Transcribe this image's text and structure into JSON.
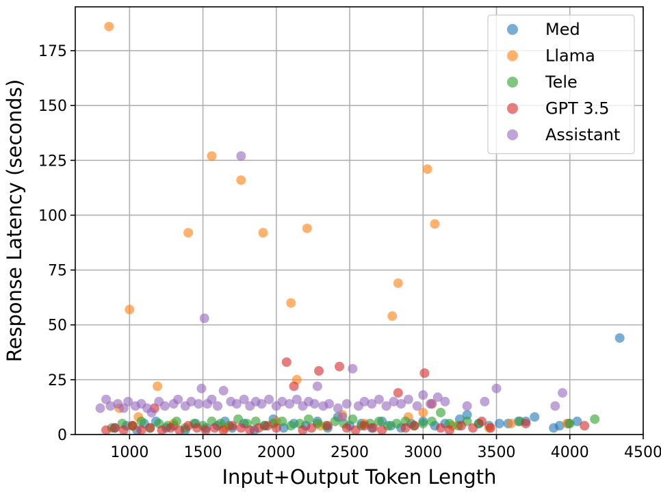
{
  "chart_data": {
    "type": "scatter",
    "xlabel": "Input+Output Token Length",
    "ylabel": "Response Latency (seconds)",
    "xlim": [
      630,
      4500
    ],
    "ylim": [
      0,
      195
    ],
    "xticks": [
      1000,
      1500,
      2000,
      2500,
      3000,
      3500,
      4000,
      4500
    ],
    "yticks": [
      0,
      25,
      50,
      75,
      100,
      125,
      150,
      175
    ],
    "grid": true,
    "legend_position": "top-right",
    "series": [
      {
        "name": "Med",
        "color": "#1f77b4",
        "points": [
          [
            900,
            3
          ],
          [
            980,
            4
          ],
          [
            1050,
            2
          ],
          [
            1100,
            5
          ],
          [
            1180,
            6
          ],
          [
            1250,
            3
          ],
          [
            1300,
            4
          ],
          [
            1380,
            2
          ],
          [
            1450,
            5
          ],
          [
            1520,
            3
          ],
          [
            1600,
            4
          ],
          [
            1650,
            6
          ],
          [
            1700,
            3
          ],
          [
            1780,
            5
          ],
          [
            1850,
            2
          ],
          [
            1920,
            4
          ],
          [
            1980,
            7
          ],
          [
            2050,
            3
          ],
          [
            2120,
            5
          ],
          [
            2200,
            4
          ],
          [
            2280,
            6
          ],
          [
            2350,
            3
          ],
          [
            2420,
            8
          ],
          [
            2500,
            4
          ],
          [
            2580,
            5
          ],
          [
            2650,
            3
          ],
          [
            2720,
            6
          ],
          [
            2780,
            4
          ],
          [
            2850,
            3
          ],
          [
            2920,
            5
          ],
          [
            3000,
            6
          ],
          [
            3080,
            4
          ],
          [
            3150,
            5
          ],
          [
            3250,
            7
          ],
          [
            3300,
            9
          ],
          [
            3380,
            5
          ],
          [
            3450,
            4
          ],
          [
            3520,
            5
          ],
          [
            3580,
            5
          ],
          [
            3650,
            6
          ],
          [
            3700,
            6
          ],
          [
            3760,
            8
          ],
          [
            3890,
            3
          ],
          [
            3930,
            4
          ],
          [
            3990,
            5
          ],
          [
            4050,
            6
          ],
          [
            4340,
            44
          ]
        ]
      },
      {
        "name": "Llama",
        "color": "#ff7f0e",
        "points": [
          [
            860,
            186
          ],
          [
            1000,
            57
          ],
          [
            930,
            12
          ],
          [
            1060,
            8
          ],
          [
            1190,
            22
          ],
          [
            1400,
            92
          ],
          [
            1560,
            127
          ],
          [
            1760,
            116
          ],
          [
            1910,
            92
          ],
          [
            2100,
            60
          ],
          [
            2140,
            25
          ],
          [
            2210,
            94
          ],
          [
            2790,
            54
          ],
          [
            2830,
            69
          ],
          [
            3030,
            121
          ],
          [
            3080,
            96
          ],
          [
            1020,
            4
          ],
          [
            1300,
            5
          ],
          [
            1650,
            3
          ],
          [
            2000,
            6
          ],
          [
            2300,
            4
          ],
          [
            2600,
            5
          ],
          [
            3000,
            10
          ],
          [
            3200,
            4
          ],
          [
            3450,
            3
          ],
          [
            3600,
            5
          ],
          [
            3980,
            5
          ],
          [
            2900,
            8
          ],
          [
            2450,
            9
          ]
        ]
      },
      {
        "name": "Tele",
        "color": "#2ca02c",
        "points": [
          [
            880,
            3
          ],
          [
            950,
            5
          ],
          [
            1020,
            4
          ],
          [
            1080,
            6
          ],
          [
            1140,
            3
          ],
          [
            1200,
            5
          ],
          [
            1260,
            4
          ],
          [
            1320,
            6
          ],
          [
            1380,
            3
          ],
          [
            1440,
            5
          ],
          [
            1500,
            4
          ],
          [
            1560,
            6
          ],
          [
            1620,
            5
          ],
          [
            1680,
            4
          ],
          [
            1740,
            7
          ],
          [
            1800,
            5
          ],
          [
            1860,
            6
          ],
          [
            1920,
            4
          ],
          [
            1980,
            5
          ],
          [
            2040,
            6
          ],
          [
            2100,
            4
          ],
          [
            2160,
            5
          ],
          [
            2220,
            7
          ],
          [
            2280,
            5
          ],
          [
            2340,
            4
          ],
          [
            2400,
            6
          ],
          [
            2460,
            5
          ],
          [
            2520,
            7
          ],
          [
            2580,
            4
          ],
          [
            2640,
            5
          ],
          [
            2700,
            6
          ],
          [
            2760,
            4
          ],
          [
            2820,
            5
          ],
          [
            2880,
            6
          ],
          [
            2940,
            4
          ],
          [
            3000,
            5
          ],
          [
            3060,
            6
          ],
          [
            3120,
            10
          ],
          [
            3180,
            5
          ],
          [
            3240,
            4
          ],
          [
            3300,
            6
          ],
          [
            3380,
            5
          ],
          [
            3660,
            6
          ],
          [
            4000,
            5
          ],
          [
            4170,
            7
          ]
        ]
      },
      {
        "name": "GPT 3.5",
        "color": "#d62728",
        "points": [
          [
            840,
            2
          ],
          [
            900,
            3
          ],
          [
            960,
            2
          ],
          [
            1020,
            4
          ],
          [
            1080,
            2
          ],
          [
            1140,
            3
          ],
          [
            1170,
            12
          ],
          [
            1220,
            2
          ],
          [
            1280,
            3
          ],
          [
            1340,
            2
          ],
          [
            1400,
            4
          ],
          [
            1460,
            3
          ],
          [
            1520,
            2
          ],
          [
            1580,
            3
          ],
          [
            1640,
            2
          ],
          [
            1700,
            4
          ],
          [
            1760,
            3
          ],
          [
            1820,
            2
          ],
          [
            1880,
            3
          ],
          [
            1940,
            4
          ],
          [
            2000,
            3
          ],
          [
            2070,
            33
          ],
          [
            2120,
            22
          ],
          [
            2180,
            2
          ],
          [
            2240,
            3
          ],
          [
            2290,
            29
          ],
          [
            2350,
            4
          ],
          [
            2430,
            31
          ],
          [
            2480,
            3
          ],
          [
            2540,
            2
          ],
          [
            2600,
            4
          ],
          [
            2660,
            3
          ],
          [
            2720,
            2
          ],
          [
            2830,
            19
          ],
          [
            2880,
            3
          ],
          [
            2940,
            4
          ],
          [
            3010,
            28
          ],
          [
            3060,
            14
          ],
          [
            3120,
            3
          ],
          [
            3180,
            2
          ],
          [
            3260,
            4
          ],
          [
            3340,
            3
          ],
          [
            3400,
            6
          ],
          [
            3460,
            3
          ],
          [
            3700,
            5
          ],
          [
            4100,
            4
          ]
        ]
      },
      {
        "name": "Assistant",
        "color": "#9467bd",
        "points": [
          [
            800,
            12
          ],
          [
            840,
            16
          ],
          [
            870,
            13
          ],
          [
            920,
            14
          ],
          [
            960,
            12
          ],
          [
            990,
            15
          ],
          [
            1040,
            13
          ],
          [
            1080,
            14
          ],
          [
            1120,
            12
          ],
          [
            1200,
            15
          ],
          [
            1240,
            13
          ],
          [
            1300,
            14
          ],
          [
            1330,
            16
          ],
          [
            1380,
            13
          ],
          [
            1420,
            15
          ],
          [
            1470,
            14
          ],
          [
            1490,
            21
          ],
          [
            1510,
            53
          ],
          [
            1530,
            14
          ],
          [
            1560,
            16
          ],
          [
            1600,
            13
          ],
          [
            1640,
            20
          ],
          [
            1690,
            15
          ],
          [
            1730,
            14
          ],
          [
            1760,
            127
          ],
          [
            1780,
            16
          ],
          [
            1820,
            13
          ],
          [
            1860,
            15
          ],
          [
            1900,
            14
          ],
          [
            1950,
            16
          ],
          [
            2000,
            13
          ],
          [
            2040,
            15
          ],
          [
            2090,
            14
          ],
          [
            2140,
            16
          ],
          [
            2180,
            13
          ],
          [
            2220,
            15
          ],
          [
            2260,
            14
          ],
          [
            2280,
            22
          ],
          [
            2320,
            13
          ],
          [
            2360,
            14
          ],
          [
            2420,
            12
          ],
          [
            2480,
            14
          ],
          [
            2520,
            30
          ],
          [
            2560,
            13
          ],
          [
            2600,
            15
          ],
          [
            2650,
            14
          ],
          [
            2700,
            16
          ],
          [
            2750,
            13
          ],
          [
            2800,
            15
          ],
          [
            2850,
            14
          ],
          [
            2900,
            16
          ],
          [
            2960,
            13
          ],
          [
            3000,
            18
          ],
          [
            3050,
            14
          ],
          [
            3100,
            17
          ],
          [
            3150,
            15
          ],
          [
            3300,
            13
          ],
          [
            3420,
            15
          ],
          [
            3500,
            21
          ],
          [
            3900,
            13
          ],
          [
            3950,
            19
          ],
          [
            2450,
            8
          ],
          [
            1150,
            10
          ]
        ]
      }
    ]
  }
}
